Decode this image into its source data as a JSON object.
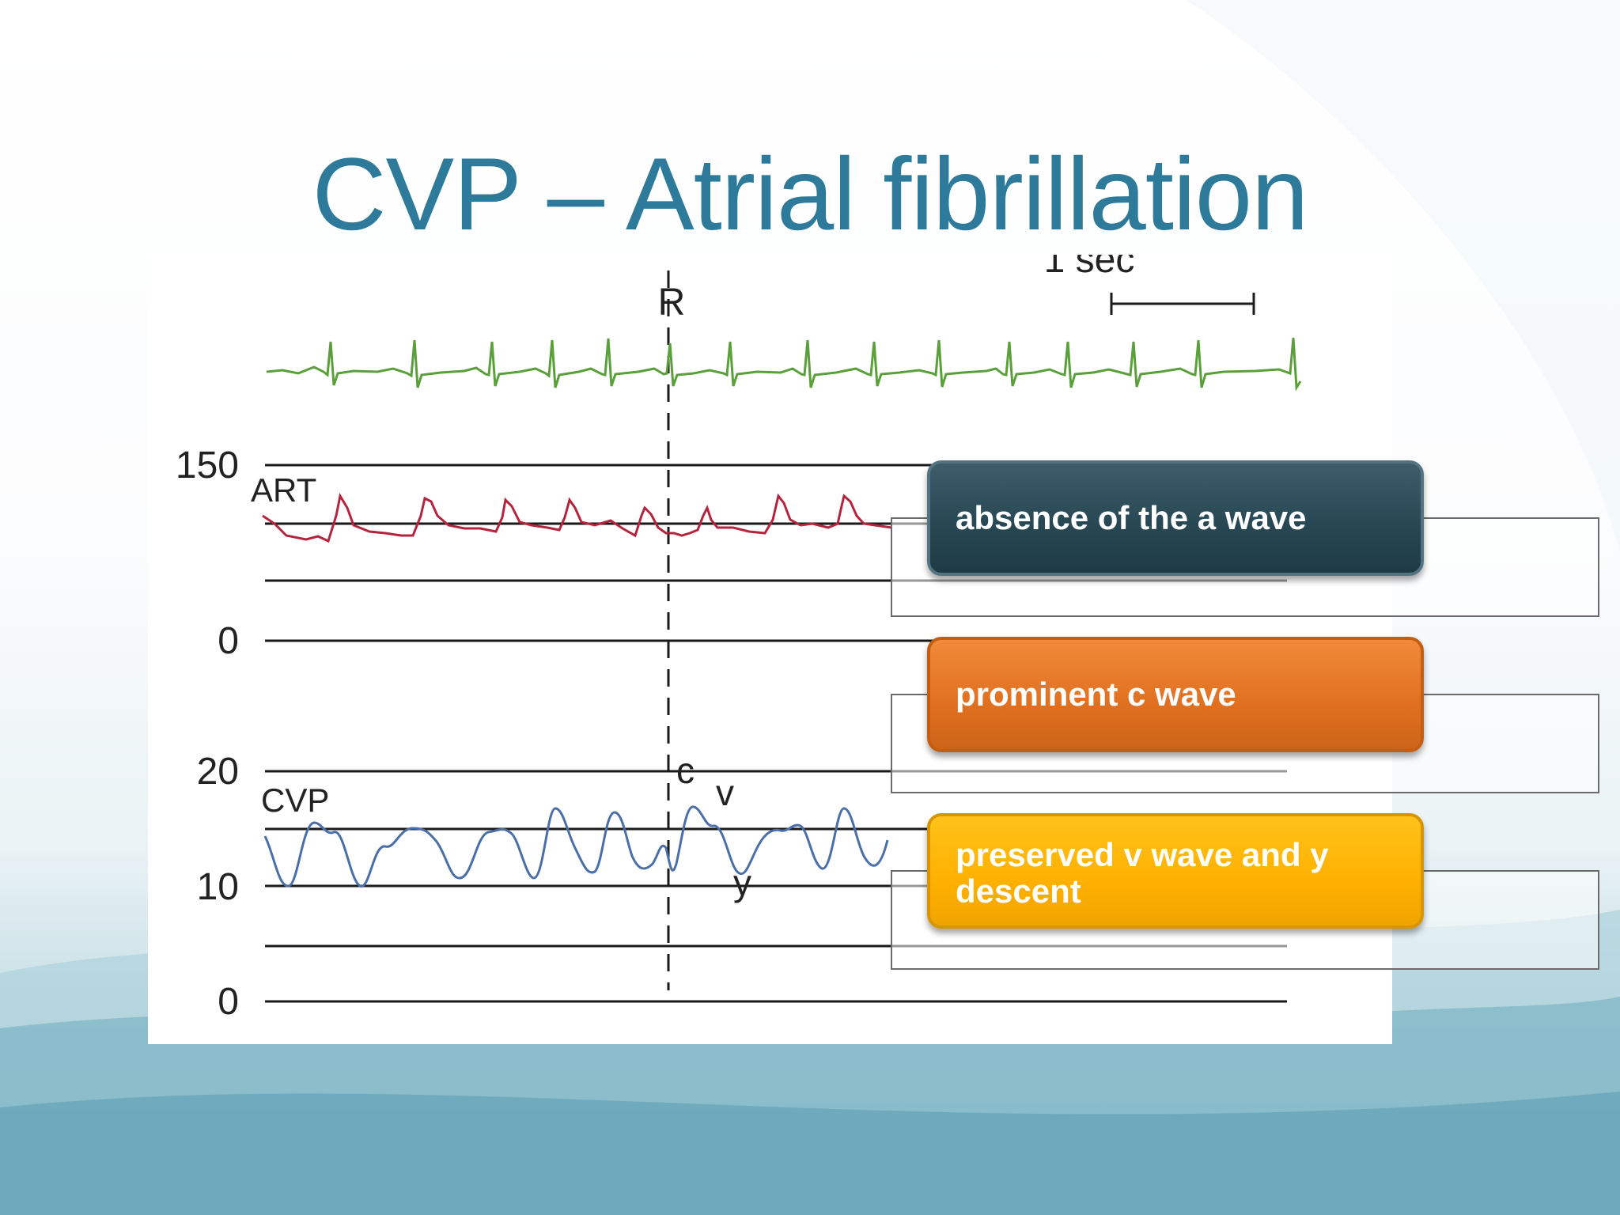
{
  "slide": {
    "title": "CVP – Atrial fibrillation"
  },
  "figure": {
    "scale_bar_label": "1 sec",
    "r_marker": "R",
    "art": {
      "label": "ART",
      "y_top_tick": "150",
      "y_zero_tick": "0"
    },
    "cvp": {
      "label": "CVP",
      "tick_20": "20",
      "tick_10": "10",
      "tick_0": "0"
    },
    "wave_letters": {
      "c": "c",
      "v": "v",
      "y": "y"
    },
    "colors": {
      "ecg": "#5aa03a",
      "art": "#b5243c",
      "cvp": "#4a6fa8",
      "grid": "#1a1a1a"
    }
  },
  "callouts": [
    {
      "text": "absence of the a wave",
      "color": "#264652"
    },
    {
      "text": "prominent c wave",
      "color": "#e07020"
    },
    {
      "text": "preserved v wave and y descent",
      "color": "#ffb000"
    }
  ]
}
